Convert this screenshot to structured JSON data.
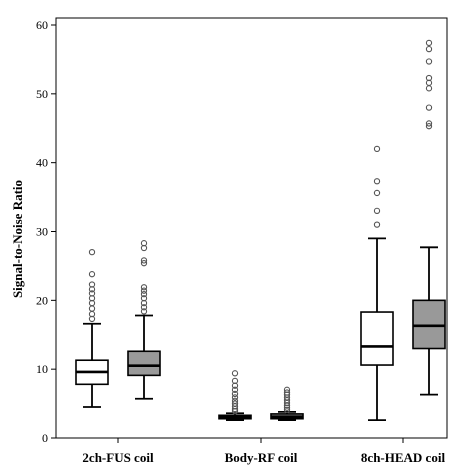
{
  "chart_data": {
    "type": "boxplot",
    "title": "",
    "xlabel": "",
    "ylabel": "Signal-to-Noise Ratio",
    "ylim": [
      0,
      60
    ],
    "yticks": [
      "0",
      "10",
      "20",
      "30",
      "40",
      "50",
      "60"
    ],
    "categories": [
      "2ch-FUS coil",
      "Body-RF coil",
      "8ch-HEAD coil"
    ],
    "series": [
      {
        "fill": "#ffffff",
        "boxes": [
          {
            "min": 4.5,
            "q1": 7.8,
            "median": 9.6,
            "q3": 11.3,
            "max": 16.6,
            "outliers": [
              17.3,
              18.0,
              18.8,
              19.6,
              20.3,
              21.0,
              21.6,
              22.3,
              23.8,
              27.0
            ]
          },
          {
            "min": 2.6,
            "q1": 2.8,
            "median": 3.1,
            "q3": 3.3,
            "max": 3.6,
            "outliers": [
              3.9,
              4.2,
              4.6,
              5.0,
              5.4,
              5.9,
              6.4,
              7.0,
              7.6,
              8.3,
              9.4
            ]
          },
          {
            "min": 2.6,
            "q1": 10.6,
            "median": 13.3,
            "q3": 18.3,
            "max": 29.0,
            "outliers": [
              31.0,
              33.0,
              35.6,
              37.3,
              42.0
            ]
          }
        ]
      },
      {
        "fill": "#999999",
        "boxes": [
          {
            "min": 5.7,
            "q1": 9.1,
            "median": 10.5,
            "q3": 12.6,
            "max": 17.8,
            "outliers": [
              18.4,
              19.0,
              19.6,
              20.3,
              20.9,
              21.4,
              21.9,
              25.4,
              25.8,
              27.6,
              28.3
            ]
          },
          {
            "min": 2.6,
            "q1": 2.8,
            "median": 3.1,
            "q3": 3.5,
            "max": 3.8,
            "outliers": [
              4.1,
              4.4,
              4.7,
              5.1,
              5.5,
              5.9,
              6.3,
              6.6,
              7.0
            ]
          },
          {
            "min": 6.3,
            "q1": 13.0,
            "median": 16.3,
            "q3": 20.0,
            "max": 27.7,
            "outliers": [
              45.3,
              45.7,
              48.0,
              50.8,
              51.6,
              52.3,
              54.7,
              56.5,
              57.4
            ]
          }
        ]
      }
    ],
    "grid": false,
    "legend": "none"
  }
}
